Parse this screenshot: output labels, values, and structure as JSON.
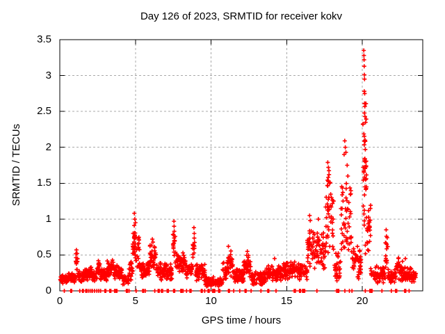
{
  "chart_data": {
    "type": "scatter",
    "title": "Day 126 of 2023, SRMTID for receiver kokv",
    "xlabel": "GPS time / hours",
    "ylabel": "SRMTID / TECUs",
    "xlim": [
      0,
      24
    ],
    "ylim": [
      0,
      3.5
    ],
    "xticks": {
      "values": [
        0,
        5,
        10,
        15,
        20
      ],
      "labels": [
        "0",
        "5",
        "10",
        "15",
        "20"
      ]
    },
    "yticks": {
      "values": [
        0,
        0.5,
        1,
        1.5,
        2,
        2.5,
        3,
        3.5
      ],
      "labels": [
        "0",
        "0.5",
        "1",
        "1.5",
        "2",
        "2.5",
        "3",
        "3.5"
      ]
    },
    "grid": true,
    "legend": "none",
    "marker": {
      "symbol": "plus",
      "size": 7,
      "stroke_width": 1.6
    },
    "colors": {
      "marker": "#ff0000",
      "grid": "#a8a8a8",
      "axis": "#000000",
      "background": "#ffffff",
      "text": "#000000"
    },
    "series": [
      {
        "name": "SRMTID kokv day 126/2023",
        "band_segments": [
          [
            0.02,
            0.5,
            0.1,
            0.23,
            42
          ],
          [
            0.5,
            1.04,
            0.1,
            0.27,
            46
          ],
          [
            1.05,
            1.18,
            0.24,
            0.57,
            14
          ],
          [
            1.18,
            1.62,
            0.12,
            0.3,
            38
          ],
          [
            1.62,
            2.12,
            0.14,
            0.34,
            44
          ],
          [
            2.12,
            2.46,
            0.12,
            0.28,
            30
          ],
          [
            2.46,
            2.66,
            0.17,
            0.42,
            18
          ],
          [
            2.66,
            3.12,
            0.14,
            0.33,
            40
          ],
          [
            3.12,
            3.56,
            0.17,
            0.45,
            38
          ],
          [
            3.56,
            4.12,
            0.14,
            0.36,
            48
          ],
          [
            4.12,
            4.56,
            0.08,
            0.22,
            38
          ],
          [
            4.56,
            4.82,
            0.14,
            0.45,
            22
          ],
          [
            4.82,
            5.02,
            0.35,
            1.05,
            26
          ],
          [
            5.02,
            5.28,
            0.28,
            0.85,
            20
          ],
          [
            5.28,
            5.96,
            0.17,
            0.42,
            56
          ],
          [
            5.96,
            6.36,
            0.24,
            0.7,
            36
          ],
          [
            6.36,
            7.42,
            0.13,
            0.42,
            88
          ],
          [
            7.46,
            7.64,
            0.45,
            0.95,
            14
          ],
          [
            7.64,
            8.32,
            0.24,
            0.56,
            56
          ],
          [
            8.32,
            8.76,
            0.17,
            0.4,
            36
          ],
          [
            8.78,
            8.96,
            0.3,
            0.86,
            14
          ],
          [
            8.96,
            9.62,
            0.12,
            0.42,
            52
          ],
          [
            9.62,
            10.76,
            0.05,
            0.2,
            88
          ],
          [
            10.76,
            11.06,
            0.14,
            0.4,
            24
          ],
          [
            11.06,
            11.46,
            0.18,
            0.6,
            32
          ],
          [
            11.46,
            12.16,
            0.1,
            0.33,
            56
          ],
          [
            12.16,
            12.62,
            0.14,
            0.54,
            36
          ],
          [
            12.62,
            13.66,
            0.07,
            0.28,
            80
          ],
          [
            13.66,
            14.72,
            0.12,
            0.36,
            80
          ],
          [
            14.72,
            15.92,
            0.15,
            0.43,
            92
          ],
          [
            15.92,
            16.36,
            0.15,
            0.38,
            34
          ],
          [
            16.36,
            16.88,
            0.25,
            0.95,
            42
          ],
          [
            16.88,
            17.56,
            0.28,
            0.9,
            54
          ],
          [
            17.56,
            18.12,
            0.4,
            1.75,
            48
          ],
          [
            18.12,
            18.58,
            0.1,
            0.55,
            30
          ],
          [
            18.58,
            19.28,
            0.35,
            1.75,
            52
          ],
          [
            19.28,
            19.98,
            0.15,
            0.65,
            44
          ],
          [
            20.02,
            20.28,
            0.4,
            3.1,
            44
          ],
          [
            20.28,
            20.56,
            0.28,
            1.35,
            22
          ],
          [
            20.56,
            21.52,
            0.1,
            0.36,
            68
          ],
          [
            21.52,
            21.7,
            0.2,
            0.8,
            14
          ],
          [
            21.7,
            22.22,
            0.1,
            0.3,
            38
          ],
          [
            22.22,
            22.66,
            0.13,
            0.46,
            34
          ],
          [
            22.66,
            23.32,
            0.1,
            0.38,
            48
          ],
          [
            23.32,
            23.55,
            0.12,
            0.3,
            16
          ]
        ],
        "peak_points": [
          [
            1.1,
            0.57
          ],
          [
            2.55,
            0.42
          ],
          [
            4.93,
            1.08
          ],
          [
            4.96,
            1.0
          ],
          [
            5.0,
            0.95
          ],
          [
            6.12,
            0.72
          ],
          [
            6.16,
            0.68
          ],
          [
            7.55,
            0.97
          ],
          [
            7.56,
            0.9
          ],
          [
            7.57,
            0.83
          ],
          [
            8.87,
            0.88
          ],
          [
            8.89,
            0.8
          ],
          [
            11.15,
            0.62
          ],
          [
            12.4,
            0.55
          ],
          [
            14.2,
            0.45
          ],
          [
            16.52,
            1.05
          ],
          [
            16.56,
            0.98
          ],
          [
            17.1,
            1.0
          ],
          [
            17.72,
            1.79
          ],
          [
            17.76,
            1.72
          ],
          [
            17.8,
            1.62
          ],
          [
            17.84,
            1.5
          ],
          [
            18.8,
            1.9
          ],
          [
            18.84,
            2.09
          ],
          [
            18.88,
            2.0
          ],
          [
            18.92,
            1.93
          ],
          [
            19.0,
            1.75
          ],
          [
            19.05,
            1.6
          ],
          [
            20.1,
            3.35
          ],
          [
            20.11,
            3.28
          ],
          [
            20.12,
            3.22
          ],
          [
            20.13,
            3.13
          ],
          [
            20.14,
            3.01
          ],
          [
            20.15,
            2.95
          ],
          [
            20.16,
            2.75
          ],
          [
            20.17,
            2.57
          ],
          [
            20.18,
            2.43
          ],
          [
            20.19,
            2.1
          ],
          [
            20.2,
            1.97
          ],
          [
            20.21,
            1.8
          ],
          [
            20.22,
            1.55
          ],
          [
            21.58,
            0.85
          ],
          [
            21.6,
            0.76
          ],
          [
            21.62,
            0.65
          ],
          [
            22.4,
            0.46
          ],
          [
            22.85,
            0.45
          ]
        ],
        "zero_marks": [
          0.3,
          0.72,
          0.78,
          1.32,
          1.5,
          1.56,
          1.72,
          1.8,
          1.92,
          2.05,
          2.15,
          2.3,
          2.45,
          2.58,
          2.7,
          2.98,
          3.05,
          3.3,
          3.38,
          3.62,
          3.7,
          3.78,
          4.4,
          4.48,
          4.58,
          5.05,
          5.48,
          5.55,
          5.65,
          6.28,
          6.5,
          6.58,
          6.72,
          6.8,
          7.1,
          7.18,
          7.52,
          7.6,
          8.0,
          8.07,
          8.15,
          8.38,
          8.6,
          8.68,
          9.35,
          9.42,
          9.58,
          9.8,
          9.88,
          10.1,
          10.18,
          10.25,
          10.5,
          10.58,
          11.15,
          11.22,
          11.5,
          11.9,
          12.25,
          12.32,
          12.65,
          13.3,
          13.75,
          13.82,
          14.3,
          15.5,
          15.58,
          15.85,
          15.92,
          16.05,
          16.12,
          16.2,
          17.0,
          18.3,
          18.38,
          18.45,
          18.85,
          19.15,
          19.32,
          20.2,
          20.5,
          20.58,
          20.65,
          21.3,
          21.92,
          22.2,
          22.28,
          22.8,
          22.88,
          23.1
        ]
      }
    ]
  }
}
